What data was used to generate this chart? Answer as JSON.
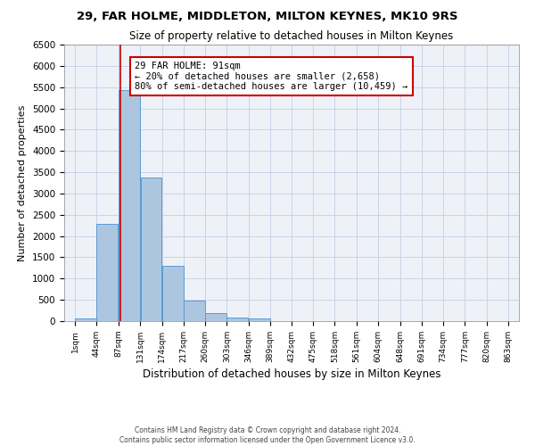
{
  "title1": "29, FAR HOLME, MIDDLETON, MILTON KEYNES, MK10 9RS",
  "title2": "Size of property relative to detached houses in Milton Keynes",
  "xlabel": "Distribution of detached houses by size in Milton Keynes",
  "ylabel": "Number of detached properties",
  "footnote1": "Contains HM Land Registry data © Crown copyright and database right 2024.",
  "footnote2": "Contains public sector information licensed under the Open Government Licence v3.0.",
  "annotation_title": "29 FAR HOLME: 91sqm",
  "annotation_line1": "← 20% of detached houses are smaller (2,658)",
  "annotation_line2": "80% of semi-detached houses are larger (10,459) →",
  "property_line_x": 91,
  "bar_edges": [
    1,
    44,
    87,
    131,
    174,
    217,
    260,
    303,
    346,
    389,
    432,
    475,
    518,
    561,
    604,
    648,
    691,
    734,
    777,
    820,
    863
  ],
  "bar_heights": [
    70,
    2280,
    5440,
    3380,
    1300,
    490,
    195,
    90,
    60,
    0,
    0,
    0,
    0,
    0,
    0,
    0,
    0,
    0,
    0,
    0
  ],
  "bar_color": "#adc6e0",
  "bar_edge_color": "#5b9bd5",
  "property_line_color": "#cc0000",
  "annotation_box_edge_color": "#cc0000",
  "grid_color": "#c8d4e8",
  "background_color": "#eef2f8",
  "ylim": [
    0,
    6500
  ],
  "yticks": [
    0,
    500,
    1000,
    1500,
    2000,
    2500,
    3000,
    3500,
    4000,
    4500,
    5000,
    5500,
    6000,
    6500
  ]
}
